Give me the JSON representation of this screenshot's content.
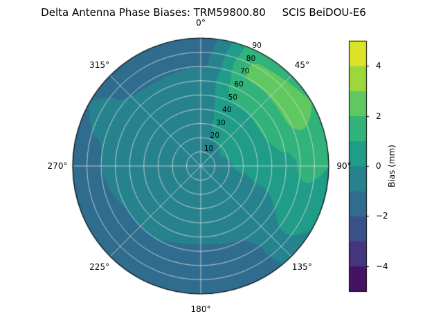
{
  "chart_data": {
    "type": "heatmap",
    "subtype": "polar_contourf_antenna_phase_bias",
    "title": "Delta Antenna Phase Biases: TRM59800.80     SCIS BeiDOU-E6",
    "colorbar": {
      "label": "Bias (mm)",
      "ticks": [
        -4,
        -2,
        0,
        2,
        4
      ],
      "tick_labels": [
        "−4",
        "−2",
        "0",
        "2",
        "4"
      ],
      "vmin": -5,
      "vmax": 5,
      "n_bands": 10
    },
    "colormap_name": "viridis",
    "colormap_stops": [
      "#440154",
      "#482878",
      "#3e4989",
      "#31688e",
      "#26828e",
      "#1f9e89",
      "#35b779",
      "#6ece58",
      "#b5de2b",
      "#fde725"
    ],
    "background_color": "#ffffff",
    "grid_line_color": "#e0e0e0",
    "azimuth_tick_labels": [
      {
        "deg": 0,
        "label": "0°"
      },
      {
        "deg": 45,
        "label": "45°"
      },
      {
        "deg": 90,
        "label": "90°"
      },
      {
        "deg": 135,
        "label": "135°"
      },
      {
        "deg": 180,
        "label": "180°"
      },
      {
        "deg": 225,
        "label": "225°"
      },
      {
        "deg": 270,
        "label": "270°"
      },
      {
        "deg": 315,
        "label": "315°"
      }
    ],
    "radial_ticks": [
      {
        "value": 10,
        "label": "10"
      },
      {
        "value": 20,
        "label": "20"
      },
      {
        "value": 30,
        "label": "30"
      },
      {
        "value": 40,
        "label": "40"
      },
      {
        "value": 50,
        "label": "50"
      },
      {
        "value": 60,
        "label": "60"
      },
      {
        "value": 70,
        "label": "70"
      },
      {
        "value": 80,
        "label": "80"
      },
      {
        "value": 90,
        "label": "90"
      }
    ],
    "radial_max": 90,
    "radial_label_angle_deg": 25,
    "grid": {
      "azimuth_deg": [
        0,
        30,
        60,
        90,
        120,
        150,
        180,
        210,
        240,
        270,
        300,
        330
      ],
      "zenith_deg": [
        0,
        15,
        30,
        45,
        60,
        75,
        90
      ],
      "bias_mm": [
        [
          -0.2,
          -0.2,
          -0.2,
          -0.2,
          -0.2,
          -0.2,
          -0.2,
          -0.2,
          -0.2,
          -0.2,
          -0.2,
          -0.2
        ],
        [
          -0.3,
          -0.1,
          0.0,
          -0.1,
          -0.3,
          -0.4,
          -0.4,
          -0.4,
          -0.4,
          -0.3,
          -0.3,
          -0.3
        ],
        [
          -0.4,
          0.3,
          0.4,
          0.1,
          -0.3,
          -0.5,
          -0.5,
          -0.6,
          -0.5,
          -0.4,
          -0.3,
          -0.4
        ],
        [
          -0.5,
          0.8,
          0.9,
          0.4,
          -0.2,
          -0.6,
          -0.7,
          -0.8,
          -0.7,
          -0.5,
          -0.4,
          -0.5
        ],
        [
          -0.6,
          1.6,
          1.7,
          0.8,
          0.0,
          -1.0,
          -1.1,
          -1.0,
          -1.0,
          -0.8,
          -0.6,
          -0.7
        ],
        [
          -1.2,
          2.2,
          2.3,
          1.2,
          0.3,
          -1.2,
          -1.4,
          -1.2,
          -1.3,
          -1.1,
          -0.9,
          -1.4
        ],
        [
          -1.5,
          1.8,
          2.0,
          1.0,
          0.0,
          -1.3,
          -1.6,
          -1.4,
          -1.5,
          -1.2,
          -1.0,
          -1.6
        ]
      ]
    }
  }
}
